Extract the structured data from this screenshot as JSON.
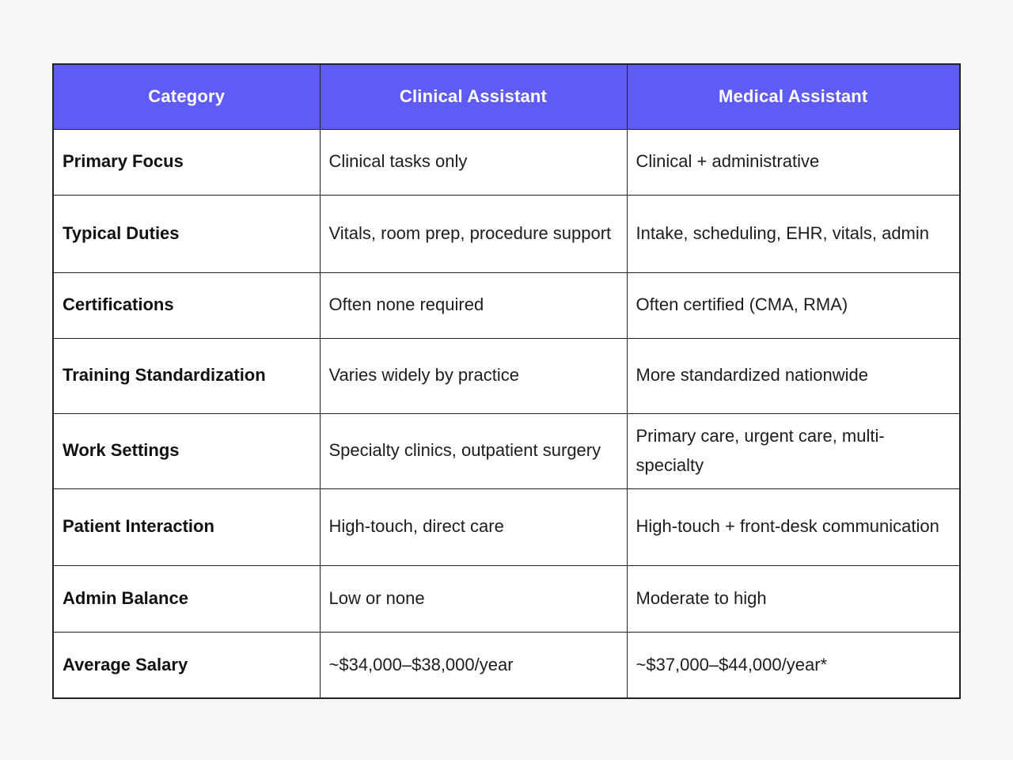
{
  "table": {
    "headers": [
      "Category",
      "Clinical Assistant",
      "Medical Assistant"
    ],
    "rows": [
      {
        "category": "Primary Focus",
        "clinical": "Clinical tasks only",
        "medical": "Clinical + administrative"
      },
      {
        "category": "Typical Duties",
        "clinical": "Vitals, room prep, procedure support",
        "medical": "Intake, scheduling, EHR, vitals, admin"
      },
      {
        "category": "Certifications",
        "clinical": "Often none required",
        "medical": "Often certified (CMA, RMA)"
      },
      {
        "category": "Training Standardization",
        "clinical": "Varies widely by practice",
        "medical": "More standardized nationwide"
      },
      {
        "category": "Work Settings",
        "clinical": "Specialty clinics, outpatient surgery",
        "medical": "Primary care, urgent care, multi-specialty"
      },
      {
        "category": "Patient Interaction",
        "clinical": "High-touch, direct care",
        "medical": "High-touch + front-desk communication"
      },
      {
        "category": "Admin Balance",
        "clinical": "Low or none",
        "medical": "Moderate to high"
      },
      {
        "category": "Average Salary",
        "clinical": "~$34,000–$38,000/year",
        "medical": "~$37,000–$44,000/year*"
      }
    ]
  },
  "colors": {
    "header_background": "#5e5cf5",
    "header_text": "#ffffff",
    "border": "#222222",
    "page_background": "#f8f8f6",
    "cell_background": "#ffffff",
    "body_text": "#1d1d1d"
  }
}
